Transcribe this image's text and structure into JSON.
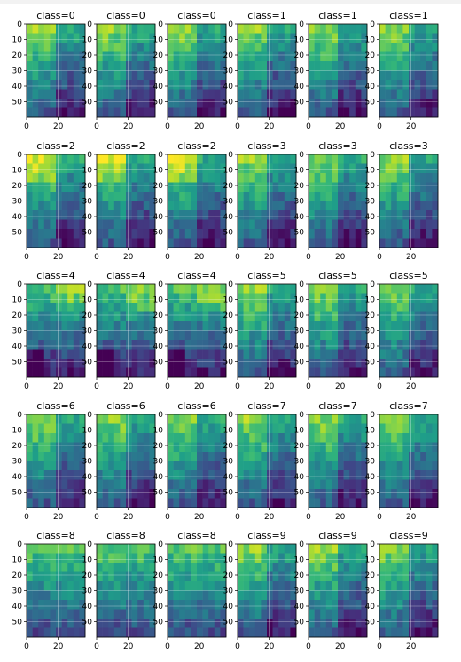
{
  "chart_data": {
    "type": "heatmap",
    "layout": {
      "rows": 5,
      "cols": 6
    },
    "colormap": "viridis",
    "grid": true,
    "image_shape": {
      "height": 60,
      "width": 37
    },
    "xticks": [
      0,
      20
    ],
    "yticks": [
      0,
      10,
      20,
      30,
      40,
      50
    ],
    "xlim": [
      0,
      37
    ],
    "ylim": [
      60,
      0
    ],
    "panels": [
      {
        "title": "class=0",
        "cls": 0
      },
      {
        "title": "class=0",
        "cls": 0
      },
      {
        "title": "class=0",
        "cls": 0
      },
      {
        "title": "class=1",
        "cls": 1
      },
      {
        "title": "class=1",
        "cls": 1
      },
      {
        "title": "class=1",
        "cls": 1
      },
      {
        "title": "class=2",
        "cls": 2
      },
      {
        "title": "class=2",
        "cls": 2
      },
      {
        "title": "class=2",
        "cls": 2
      },
      {
        "title": "class=3",
        "cls": 3
      },
      {
        "title": "class=3",
        "cls": 3
      },
      {
        "title": "class=3",
        "cls": 3
      },
      {
        "title": "class=4",
        "cls": 4
      },
      {
        "title": "class=4",
        "cls": 4
      },
      {
        "title": "class=4",
        "cls": 4
      },
      {
        "title": "class=5",
        "cls": 5
      },
      {
        "title": "class=5",
        "cls": 5
      },
      {
        "title": "class=5",
        "cls": 5
      },
      {
        "title": "class=6",
        "cls": 6
      },
      {
        "title": "class=6",
        "cls": 6
      },
      {
        "title": "class=6",
        "cls": 6
      },
      {
        "title": "class=7",
        "cls": 7
      },
      {
        "title": "class=7",
        "cls": 7
      },
      {
        "title": "class=7",
        "cls": 7
      },
      {
        "title": "class=8",
        "cls": 8
      },
      {
        "title": "class=8",
        "cls": 8
      },
      {
        "title": "class=8",
        "cls": 8
      },
      {
        "title": "class=9",
        "cls": 9
      },
      {
        "title": "class=9",
        "cls": 9
      },
      {
        "title": "class=9",
        "cls": 9
      }
    ]
  }
}
